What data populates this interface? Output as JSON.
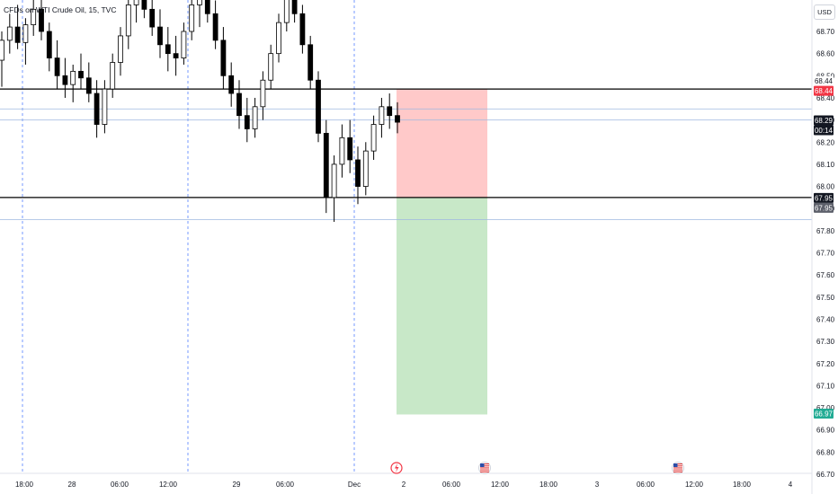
{
  "symbol_legend": "CFDs on WTI Crude Oil, 15, TVC",
  "currency_label": "USD",
  "price_tags": {
    "resistance_line": "68.44",
    "stop_level": "68.44",
    "last_price": "68.29",
    "countdown": "00:14",
    "support_line": "67.95",
    "entry_level": "67.95",
    "target_level": "66.97"
  },
  "colors": {
    "up_candle": "#ffffff",
    "down_candle": "#000000",
    "risk_zone": "#ffc9c9",
    "reward_zone": "#c8e8c8",
    "stop_tag": "#f23645",
    "target_tag": "#22ab94",
    "tag_dark": "#131722",
    "tag_gray": "#5d606b",
    "session_divider": "#2962ff"
  },
  "event_icons": [
    "lightning-event-icon",
    "us-flag-event-icon",
    "us-flag-event-icon"
  ],
  "chart_data": {
    "type": "candlestick",
    "title": "",
    "y_axis": {
      "range": [
        66.69,
        68.92
      ],
      "ticks": [
        "68.80",
        "68.70",
        "68.60",
        "68.50",
        "68.40",
        "68.30",
        "68.20",
        "68.10",
        "68.00",
        "67.90",
        "67.80",
        "67.70",
        "67.60",
        "67.50",
        "67.40",
        "67.30",
        "67.20",
        "67.10",
        "67.00",
        "66.90",
        "66.80",
        "66.70"
      ]
    },
    "x_axis": {
      "ticks": [
        "18:00",
        "28",
        "06:00",
        "12:00",
        "29",
        "06:00",
        "Dec",
        "2",
        "06:00",
        "12:00",
        "18:00",
        "3",
        "06:00",
        "12:00",
        "18:00",
        "4"
      ]
    },
    "series": [
      {
        "ohlc": [
          [
            68.57,
            68.7,
            68.45,
            68.66
          ],
          [
            68.66,
            68.78,
            68.6,
            68.72
          ],
          [
            68.72,
            68.82,
            68.62,
            68.65
          ],
          [
            68.65,
            68.76,
            68.55,
            68.73
          ],
          [
            68.73,
            68.85,
            68.68,
            68.8
          ],
          [
            68.8,
            68.86,
            68.66,
            68.7
          ],
          [
            68.7,
            68.74,
            68.52,
            68.58
          ],
          [
            68.58,
            68.66,
            68.44,
            68.5
          ],
          [
            68.5,
            68.58,
            68.4,
            68.46
          ],
          [
            68.46,
            68.55,
            68.38,
            68.52
          ],
          [
            68.52,
            68.6,
            68.44,
            68.49
          ],
          [
            68.49,
            68.56,
            68.38,
            68.42
          ],
          [
            68.42,
            68.48,
            68.22,
            68.28
          ],
          [
            68.28,
            68.48,
            68.24,
            68.44
          ],
          [
            68.44,
            68.6,
            68.4,
            68.56
          ],
          [
            68.56,
            68.72,
            68.5,
            68.68
          ],
          [
            68.68,
            68.86,
            68.62,
            68.82
          ],
          [
            68.82,
            68.9,
            68.74,
            68.85
          ],
          [
            68.85,
            68.92,
            68.76,
            68.8
          ],
          [
            68.8,
            68.88,
            68.68,
            68.72
          ],
          [
            68.72,
            68.8,
            68.58,
            68.64
          ],
          [
            68.64,
            68.72,
            68.52,
            68.6
          ],
          [
            68.6,
            68.68,
            68.5,
            68.58
          ],
          [
            68.58,
            68.74,
            68.55,
            68.7
          ],
          [
            68.7,
            68.86,
            68.66,
            68.82
          ],
          [
            68.82,
            68.92,
            68.72,
            68.88
          ],
          [
            68.88,
            68.92,
            68.74,
            68.78
          ],
          [
            68.78,
            68.84,
            68.62,
            68.66
          ],
          [
            68.66,
            68.72,
            68.44,
            68.5
          ],
          [
            68.5,
            68.56,
            68.36,
            68.42
          ],
          [
            68.42,
            68.48,
            68.26,
            68.32
          ],
          [
            68.32,
            68.4,
            68.2,
            68.26
          ],
          [
            68.26,
            68.4,
            68.22,
            68.36
          ],
          [
            68.36,
            68.52,
            68.3,
            68.48
          ],
          [
            68.48,
            68.64,
            68.44,
            68.6
          ],
          [
            68.6,
            68.78,
            68.56,
            68.74
          ],
          [
            68.74,
            68.9,
            68.7,
            68.86
          ],
          [
            68.86,
            68.92,
            68.74,
            68.78
          ],
          [
            68.78,
            68.82,
            68.6,
            68.64
          ],
          [
            68.64,
            68.68,
            68.44,
            68.48
          ],
          [
            68.48,
            68.52,
            68.2,
            68.24
          ],
          [
            68.24,
            68.3,
            67.88,
            67.95
          ],
          [
            67.95,
            68.14,
            67.84,
            68.1
          ],
          [
            68.1,
            68.28,
            68.04,
            68.22
          ],
          [
            68.22,
            68.3,
            68.06,
            68.12
          ],
          [
            68.12,
            68.18,
            67.92,
            68.0
          ],
          [
            68.0,
            68.2,
            67.96,
            68.16
          ],
          [
            68.16,
            68.32,
            68.12,
            68.28
          ],
          [
            68.28,
            68.4,
            68.22,
            68.36
          ],
          [
            68.36,
            68.42,
            68.26,
            68.32
          ],
          [
            68.32,
            68.38,
            68.24,
            68.29
          ]
        ]
      }
    ],
    "horizontal_levels": [
      68.44,
      68.35,
      68.3,
      67.95,
      67.85
    ],
    "position_tool": {
      "stop": 68.44,
      "entry": 67.95,
      "target": 66.97
    },
    "grid": false,
    "legend": "none"
  }
}
